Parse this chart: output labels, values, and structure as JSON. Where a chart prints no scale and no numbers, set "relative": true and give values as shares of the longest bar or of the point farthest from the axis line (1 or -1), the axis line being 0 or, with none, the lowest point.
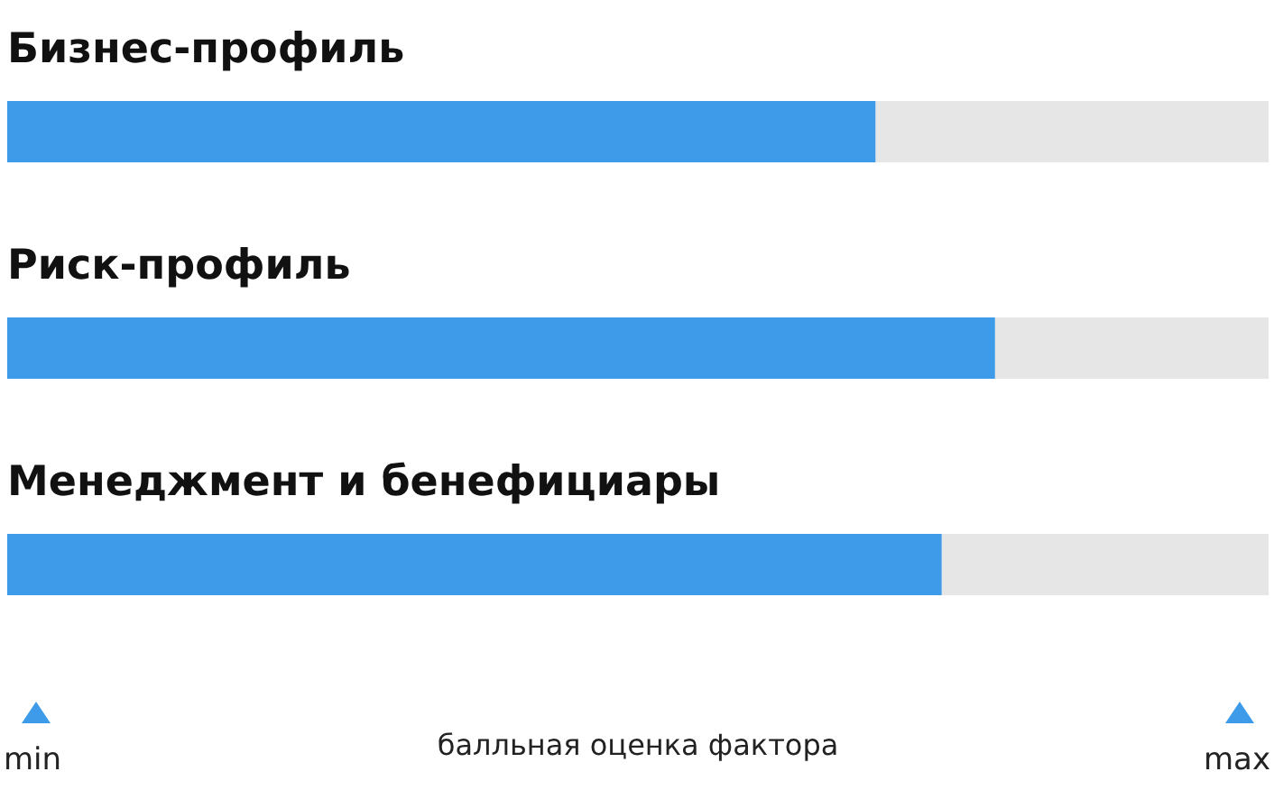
{
  "chart_data": {
    "type": "bar",
    "orientation": "horizontal",
    "relative": true,
    "categories": [
      "Бизнес-профиль",
      "Риск-профиль",
      "Менеджмент и бенефициары"
    ],
    "values": [
      0.879,
      1,
      0.946
    ],
    "color": "#3d9be9",
    "xlabel": "балльная оценка фактора",
    "annotations": [
      "min",
      "max"
    ]
  }
}
